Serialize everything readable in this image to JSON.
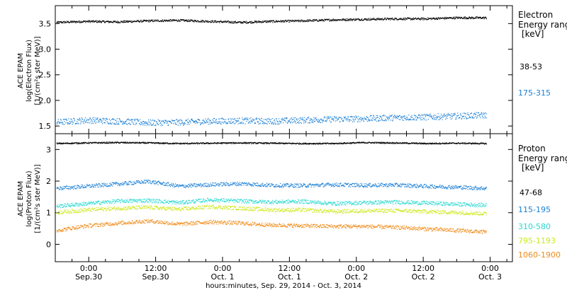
{
  "chart_data": [
    {
      "type": "scatter",
      "ylabel_lines": [
        "ACE EPAM",
        "log(Electron Flux)",
        "[1/(cm²s ster MeV)]"
      ],
      "ylim": [
        1.35,
        3.85
      ],
      "yticks": [
        1.5,
        2.0,
        2.5,
        3.0,
        3.5
      ],
      "ytick_labels": [
        "1.5",
        "2.0",
        "2.5",
        "3.0",
        "3.5"
      ],
      "legend_title": [
        "Electron",
        "Energy ranges",
        "[keV]"
      ],
      "series": [
        {
          "name": "38-53",
          "color": "#000000",
          "y": [
            3.53,
            3.55,
            3.54,
            3.56,
            3.57,
            3.55,
            3.53,
            3.55,
            3.56,
            3.58,
            3.59,
            3.6,
            3.6,
            3.62,
            3.62
          ]
        },
        {
          "name": "175-315",
          "color": "#1a7fd6",
          "y": [
            1.58,
            1.62,
            1.6,
            1.57,
            1.58,
            1.6,
            1.61,
            1.6,
            1.62,
            1.64,
            1.65,
            1.67,
            1.68,
            1.7,
            1.72
          ]
        }
      ]
    },
    {
      "type": "scatter",
      "ylabel_lines": [
        "ACE EPAM",
        "log(Proton Flux)",
        "[1/(cm²s ster MeV)]"
      ],
      "ylim": [
        -0.55,
        3.5
      ],
      "yticks": [
        0,
        1,
        2,
        3
      ],
      "ytick_labels": [
        "0",
        "1",
        "2",
        "3"
      ],
      "legend_title": [
        "Proton",
        "Energy ranges",
        "[keV]"
      ],
      "series": [
        {
          "name": "47-68",
          "color": "#000000",
          "y": [
            3.2,
            3.22,
            3.23,
            3.22,
            3.2,
            3.21,
            3.22,
            3.21,
            3.2,
            3.2,
            3.23,
            3.22,
            3.2,
            3.21,
            3.2
          ]
        },
        {
          "name": "115-195",
          "color": "#1a7fd6",
          "y": [
            1.78,
            1.85,
            1.92,
            2.0,
            1.85,
            1.9,
            1.93,
            1.88,
            1.87,
            1.9,
            1.88,
            1.89,
            1.85,
            1.82,
            1.78
          ]
        },
        {
          "name": "310-580",
          "color": "#27d8d0",
          "y": [
            1.22,
            1.3,
            1.38,
            1.4,
            1.33,
            1.42,
            1.38,
            1.35,
            1.37,
            1.3,
            1.33,
            1.35,
            1.32,
            1.28,
            1.25
          ]
        },
        {
          "name": "795-1193",
          "color": "#cde81c",
          "y": [
            1.02,
            1.1,
            1.15,
            1.18,
            1.12,
            1.2,
            1.15,
            1.1,
            1.1,
            1.05,
            1.07,
            1.08,
            1.05,
            1.02,
            0.98
          ]
        },
        {
          "name": "1060-1900",
          "color": "#ef8a17",
          "y": [
            0.45,
            0.6,
            0.68,
            0.75,
            0.65,
            0.72,
            0.68,
            0.62,
            0.6,
            0.58,
            0.58,
            0.55,
            0.5,
            0.45,
            0.4
          ]
        }
      ]
    }
  ],
  "x_axis": {
    "tick_time": [
      "0:00",
      "12:00",
      "0:00",
      "12:00",
      "0:00",
      "12:00",
      "0:00"
    ],
    "tick_date": [
      "Sep.30",
      "Sep.30",
      "Oct. 1",
      "Oct. 1",
      "Oct. 2",
      "Oct. 2",
      "Oct. 3"
    ],
    "tick_hours": [
      24,
      36,
      48,
      60,
      72,
      84,
      96
    ],
    "xlim_hours": [
      18,
      100
    ],
    "data_hours": [
      18.2,
      95.3
    ],
    "title": "hours:minutes, Sep. 29, 2014 - Oct.  3, 2014"
  }
}
